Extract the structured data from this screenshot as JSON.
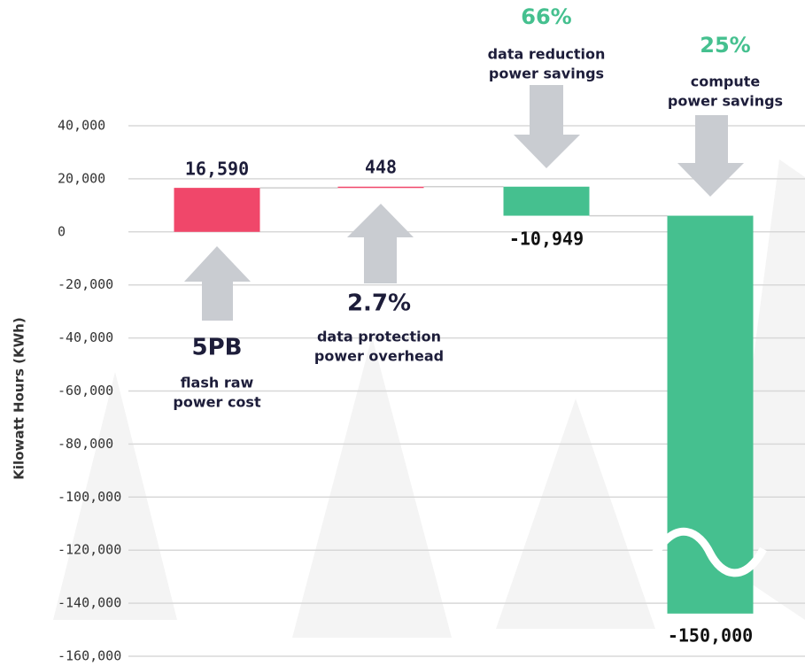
{
  "chart_data": {
    "type": "waterfall",
    "y_label": "Kilowatt Hours (KWh)",
    "categories": [
      null,
      null,
      null,
      null
    ],
    "values": [
      16590,
      448,
      -10949,
      -150000
    ],
    "value_labels": [
      "16,590",
      "448",
      "-10,949",
      "-150,000"
    ],
    "colors": [
      "#f0476a",
      "#f0476a",
      "#45c08f",
      "#45c08f"
    ],
    "ylim": [
      -160000,
      40000
    ],
    "yticks": [
      {
        "value": 40000,
        "label": "40,000"
      },
      {
        "value": 20000,
        "label": "20,000"
      },
      0,
      {
        "value": -20000,
        "label": "-20,000"
      },
      {
        "value": -40000,
        "label": "-40,000"
      },
      {
        "value": -60000,
        "label": "-60,000"
      },
      {
        "value": -80000,
        "label": "-80,000"
      },
      {
        "value": -100000,
        "label": "-100,000"
      },
      {
        "value": -120000,
        "label": "-120,000"
      },
      {
        "value": -140000,
        "label": "-140,000"
      },
      {
        "value": -160000,
        "label": "-160,000"
      }
    ],
    "grid": true,
    "annotations": [
      {
        "headline": "5PB",
        "lines": [
          "flash raw",
          "power cost"
        ]
      },
      {
        "headline": "2.7%",
        "lines": [
          "data protection",
          "power overhead"
        ]
      },
      {
        "headline": "66%",
        "lines": [
          "data reduction",
          "power savings"
        ]
      },
      {
        "headline": "25%",
        "lines": [
          "compute",
          "power savings"
        ]
      }
    ]
  }
}
